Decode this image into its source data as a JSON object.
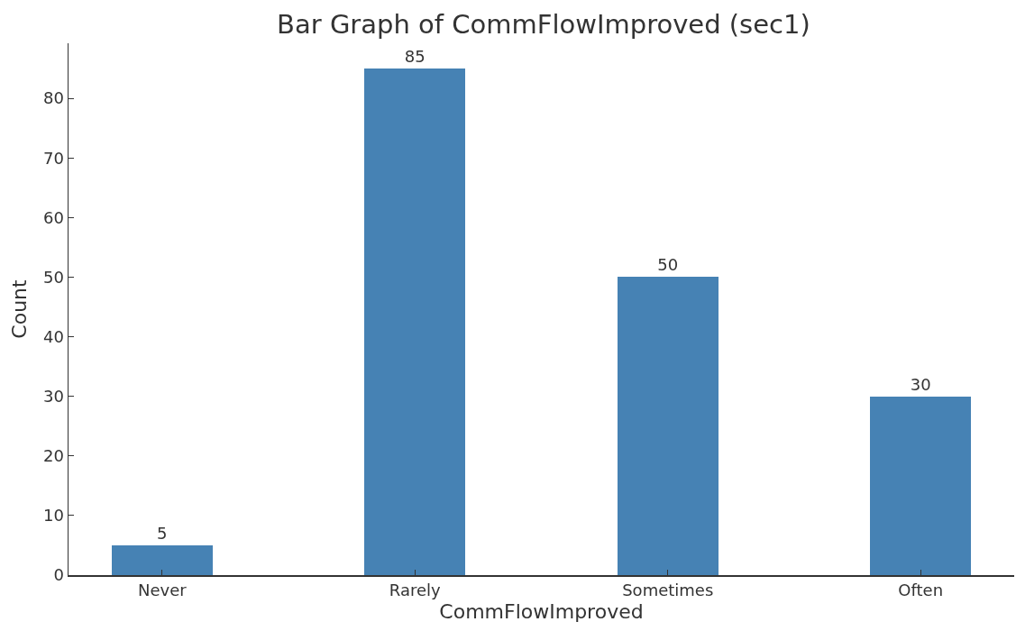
{
  "chart_data": {
    "type": "bar",
    "title": "Bar Graph of CommFlowImproved (sec1)",
    "xlabel": "CommFlowImproved",
    "ylabel": "Count",
    "categories": [
      "Never",
      "Rarely",
      "Sometimes",
      "Often"
    ],
    "values": [
      5,
      85,
      50,
      30
    ],
    "color": "#4682b4",
    "ylim": [
      0,
      89.25
    ],
    "yticks": [
      0,
      10,
      20,
      30,
      40,
      50,
      60,
      70,
      80
    ],
    "data_labels": true
  }
}
